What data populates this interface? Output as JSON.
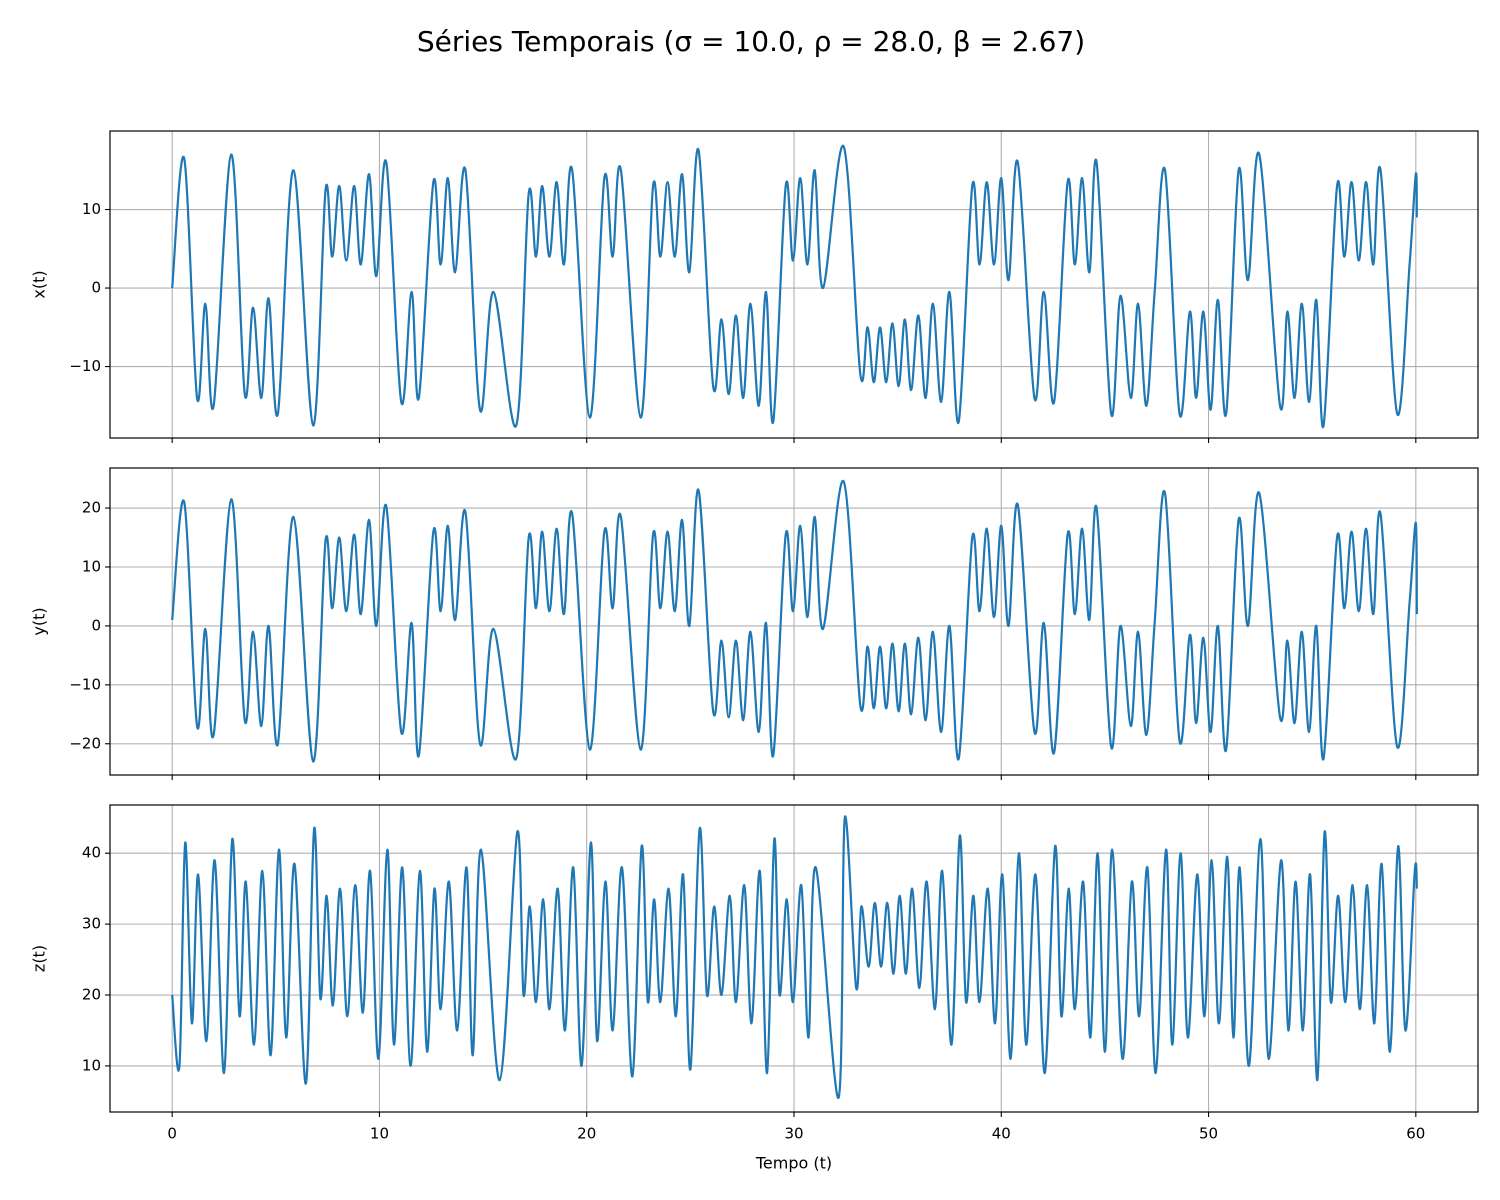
{
  "title": "Séries Temporais (σ = 10.0, ρ = 28.0, β = 2.67)",
  "chart_data": [
    {
      "type": "line",
      "ylabel": "x(t)",
      "color": "#1f77b4",
      "grid": true,
      "xlim": [
        -3,
        63
      ],
      "xticks": [
        0,
        10,
        20,
        30,
        40,
        50,
        60
      ],
      "ylim": [
        -19.1,
        20.0
      ],
      "yticks": [
        {
          "value": -10,
          "label": "−10"
        },
        0,
        10
      ],
      "x": [
        0,
        0.58,
        1.2,
        1.6,
        2.0,
        2.85,
        3.5,
        3.9,
        4.3,
        4.65,
        5.1,
        5.85,
        6.8,
        7.4,
        7.72,
        8.06,
        8.4,
        8.78,
        9.1,
        9.5,
        9.85,
        10.33,
        11.05,
        11.55,
        11.9,
        12.6,
        12.95,
        13.3,
        13.65,
        14.15,
        14.85,
        15.5,
        16.6,
        17.2,
        17.55,
        17.85,
        18.2,
        18.55,
        18.9,
        19.3,
        20.15,
        20.85,
        21.25,
        21.65,
        22.6,
        23.2,
        23.55,
        23.9,
        24.25,
        24.6,
        24.95,
        25.4,
        26.1,
        26.5,
        26.85,
        27.2,
        27.55,
        27.9,
        28.3,
        28.65,
        29.0,
        29.6,
        29.95,
        30.3,
        30.65,
        31.0,
        31.4,
        32.4,
        33.2,
        33.55,
        33.85,
        34.15,
        34.45,
        34.75,
        35.05,
        35.35,
        35.65,
        36.0,
        36.35,
        36.7,
        37.1,
        37.5,
        37.95,
        38.6,
        38.95,
        39.3,
        39.65,
        40.0,
        40.35,
        40.8,
        41.6,
        42.05,
        42.55,
        43.2,
        43.55,
        43.9,
        44.25,
        44.6,
        45.3,
        45.75,
        46.25,
        46.6,
        47.0,
        47.4,
        47.9,
        48.6,
        49.1,
        49.4,
        49.75,
        50.1,
        50.45,
        50.85,
        51.45,
        51.9,
        52.45,
        53.45,
        53.8,
        54.15,
        54.5,
        54.85,
        55.2,
        55.55,
        56.2,
        56.55,
        56.9,
        57.25,
        57.6,
        57.95,
        58.3,
        59.1,
        59.7,
        60.0,
        60.05
      ],
      "values": [
        0,
        16.5,
        -14,
        -2,
        -15,
        17,
        -13.5,
        -2.5,
        -14,
        -1.3,
        -16,
        15,
        -17.5,
        12.5,
        4,
        13,
        3.5,
        13,
        3,
        14.5,
        1.5,
        16,
        -14.5,
        -0.5,
        -14,
        13.5,
        3,
        14,
        2,
        15,
        -15.5,
        -0.5,
        -17.5,
        12,
        4,
        13,
        4,
        13.5,
        3,
        15,
        -16.5,
        14,
        4,
        15,
        -16.5,
        13,
        4,
        13.5,
        4,
        14.5,
        2,
        17.5,
        -12.5,
        -4,
        -13.5,
        -3.5,
        -14,
        -2,
        -15,
        -0.5,
        -17,
        13,
        3.5,
        14,
        3,
        15,
        0,
        18,
        -11,
        -5,
        -12,
        -5,
        -12,
        -4.5,
        -12.5,
        -4,
        -13,
        -3.5,
        -14,
        -2,
        -14.5,
        -0.5,
        -17,
        13,
        3,
        13.5,
        3,
        14,
        1,
        16,
        -14,
        -0.5,
        -14.5,
        13.5,
        3,
        14,
        2,
        16,
        -16,
        -1,
        -14,
        -2,
        -15,
        -0.5,
        15,
        -16,
        -3,
        -14,
        -3,
        -15.5,
        -1.5,
        -16,
        15,
        1,
        17,
        -15,
        -3,
        -14,
        -2,
        -14.5,
        -1.5,
        -17.5,
        13,
        4,
        13.5,
        3.5,
        13.5,
        3,
        15,
        -16,
        3,
        14.5,
        9
      ]
    },
    {
      "type": "line",
      "ylabel": "y(t)",
      "color": "#1f77b4",
      "grid": true,
      "xlim": [
        -3,
        63
      ],
      "xticks": [
        0,
        10,
        20,
        30,
        40,
        50,
        60
      ],
      "ylim": [
        -25.3,
        26.8
      ],
      "yticks": [
        {
          "value": -20,
          "label": "−20"
        },
        {
          "value": -10,
          "label": "−10"
        },
        0,
        10,
        20
      ],
      "x": [
        0,
        0.58,
        1.2,
        1.6,
        2.0,
        2.85,
        3.5,
        3.9,
        4.3,
        4.65,
        5.1,
        5.85,
        6.8,
        7.4,
        7.72,
        8.06,
        8.4,
        8.78,
        9.1,
        9.5,
        9.85,
        10.33,
        11.05,
        11.55,
        11.9,
        12.6,
        12.95,
        13.3,
        13.65,
        14.15,
        14.85,
        15.5,
        16.6,
        17.2,
        17.55,
        17.85,
        18.2,
        18.55,
        18.9,
        19.3,
        20.15,
        20.85,
        21.25,
        21.65,
        22.6,
        23.2,
        23.55,
        23.9,
        24.25,
        24.6,
        24.95,
        25.4,
        26.1,
        26.5,
        26.85,
        27.2,
        27.55,
        27.9,
        28.3,
        28.65,
        29.0,
        29.6,
        29.95,
        30.3,
        30.65,
        31.0,
        31.4,
        32.4,
        33.2,
        33.55,
        33.85,
        34.15,
        34.45,
        34.75,
        35.05,
        35.35,
        35.65,
        36.0,
        36.35,
        36.7,
        37.1,
        37.5,
        37.95,
        38.6,
        38.95,
        39.3,
        39.65,
        40.0,
        40.35,
        40.8,
        41.6,
        42.05,
        42.55,
        43.2,
        43.55,
        43.9,
        44.25,
        44.6,
        45.3,
        45.75,
        46.25,
        46.6,
        47.0,
        47.4,
        47.9,
        48.6,
        49.1,
        49.4,
        49.75,
        50.1,
        50.45,
        50.85,
        51.45,
        51.9,
        52.45,
        53.45,
        53.8,
        54.15,
        54.5,
        54.85,
        55.2,
        55.55,
        56.2,
        56.55,
        56.9,
        57.25,
        57.6,
        57.95,
        58.3,
        59.1,
        59.7,
        60.0,
        60.05
      ],
      "values": [
        1,
        21,
        -17,
        -0.5,
        -18.5,
        21.5,
        -16,
        -1,
        -17,
        0,
        -20,
        18.5,
        -23,
        14.5,
        3,
        15,
        2.5,
        15.5,
        2,
        18,
        0,
        20.3,
        -18,
        0.5,
        -22,
        16,
        2.5,
        17,
        1,
        19.3,
        -20,
        -0.5,
        -22.5,
        15,
        3,
        16,
        2.5,
        16.5,
        2,
        19,
        -21,
        16,
        3,
        18.5,
        -21,
        15.5,
        3,
        16,
        2.5,
        18,
        0,
        23,
        -14.5,
        -2.5,
        -15.5,
        -2.5,
        -16,
        -1,
        -18,
        0.5,
        -22,
        15.5,
        2.5,
        17,
        1.5,
        18.5,
        -0.5,
        24.5,
        -13.5,
        -3.5,
        -14,
        -3.5,
        -14,
        -3,
        -14.5,
        -3,
        -15,
        -2,
        -16,
        -1,
        -18,
        0,
        -22.5,
        15,
        2.5,
        16.5,
        1.5,
        17,
        0,
        20.5,
        -18,
        0.5,
        -21.5,
        15.5,
        2,
        16.5,
        1,
        20,
        -20.5,
        0,
        -17,
        -1,
        -18.5,
        0.5,
        22.5,
        -19.5,
        -1.5,
        -16.5,
        -2,
        -18,
        0,
        -21,
        18,
        0,
        22.5,
        -15.5,
        -2.5,
        -16.5,
        -1,
        -18,
        0,
        -22.5,
        15,
        3,
        16,
        2.5,
        16.5,
        2,
        19,
        -20.5,
        4,
        17.5,
        2
      ]
    },
    {
      "type": "line",
      "ylabel": "z(t)",
      "xlabel": "Tempo (t)",
      "color": "#1f77b4",
      "grid": true,
      "xlim": [
        -3,
        63
      ],
      "xticks": [
        0,
        10,
        20,
        30,
        40,
        50,
        60
      ],
      "ylim": [
        3.5,
        46.8
      ],
      "yticks": [
        10,
        20,
        30,
        40
      ],
      "x": [
        0,
        0.35,
        0.63,
        0.95,
        1.25,
        1.65,
        2.05,
        2.5,
        2.9,
        3.25,
        3.55,
        3.95,
        4.35,
        4.75,
        5.15,
        5.5,
        5.9,
        6.45,
        6.85,
        7.15,
        7.45,
        7.75,
        8.1,
        8.45,
        8.83,
        9.2,
        9.55,
        9.95,
        10.38,
        10.7,
        11.1,
        11.5,
        11.95,
        12.3,
        12.65,
        12.95,
        13.35,
        13.75,
        14.2,
        14.5,
        14.9,
        15.8,
        16.65,
        16.95,
        17.25,
        17.55,
        17.9,
        18.2,
        18.6,
        18.95,
        19.35,
        19.75,
        20.2,
        20.5,
        20.9,
        21.25,
        21.7,
        22.2,
        22.65,
        22.95,
        23.25,
        23.55,
        23.95,
        24.3,
        24.65,
        25.0,
        25.45,
        25.8,
        26.15,
        26.5,
        26.9,
        27.2,
        27.6,
        27.95,
        28.35,
        28.7,
        29.05,
        29.3,
        29.65,
        29.95,
        30.35,
        30.7,
        31.05,
        32.15,
        32.45,
        33.0,
        33.25,
        33.6,
        33.9,
        34.2,
        34.5,
        34.8,
        35.1,
        35.4,
        35.7,
        36.05,
        36.4,
        36.8,
        37.15,
        37.6,
        38.0,
        38.3,
        38.65,
        38.95,
        39.35,
        39.7,
        40.05,
        40.45,
        40.85,
        41.2,
        41.65,
        42.1,
        42.6,
        42.9,
        43.25,
        43.55,
        43.95,
        44.3,
        44.65,
        45.0,
        45.35,
        45.85,
        46.3,
        46.65,
        47.05,
        47.45,
        47.95,
        48.25,
        48.65,
        49.0,
        49.45,
        49.8,
        50.15,
        50.5,
        50.9,
        51.2,
        51.5,
        51.95,
        52.5,
        52.9,
        53.5,
        53.85,
        54.2,
        54.55,
        54.9,
        55.25,
        55.6,
        55.9,
        56.25,
        56.6,
        56.95,
        57.3,
        57.65,
        58.0,
        58.35,
        58.75,
        59.15,
        59.5,
        59.95,
        60.05
      ],
      "values": [
        20,
        10,
        41.5,
        16,
        37,
        13.5,
        39,
        9,
        42,
        17,
        36,
        13,
        37.5,
        11.5,
        40.5,
        14,
        38.5,
        7.5,
        43.5,
        19.5,
        34,
        18.5,
        35,
        17,
        35.5,
        17.5,
        37.5,
        11,
        40.5,
        13,
        38,
        10,
        37.5,
        12,
        35,
        18,
        36,
        15,
        38,
        11.5,
        40.5,
        8,
        43,
        20,
        32.5,
        19,
        33.5,
        18,
        35,
        15,
        38,
        10,
        41.5,
        13.5,
        36,
        15,
        38,
        8.5,
        41,
        19,
        33.5,
        19,
        35,
        17,
        37,
        9.5,
        43.5,
        20,
        32.5,
        20,
        34,
        19,
        35.5,
        16,
        37.5,
        9,
        42,
        20,
        33.5,
        19,
        35.5,
        14,
        38,
        5.5,
        45,
        21,
        32.5,
        24,
        33,
        24,
        33,
        23,
        34,
        23,
        35,
        21,
        36,
        18,
        37.5,
        13,
        42.5,
        19,
        34,
        19,
        35,
        16,
        37,
        11,
        40,
        13,
        37,
        9,
        41,
        17,
        35,
        18,
        36,
        14,
        40,
        12,
        40.5,
        11,
        36,
        17,
        38,
        9,
        40.5,
        13,
        40,
        14,
        37,
        17,
        39,
        16,
        39.5,
        14,
        38,
        10,
        42,
        11,
        39,
        15,
        36,
        15,
        37,
        8,
        43,
        19,
        34,
        19,
        35.5,
        18,
        35.5,
        16,
        38.5,
        12,
        41,
        15,
        37.5,
        35
      ]
    }
  ]
}
